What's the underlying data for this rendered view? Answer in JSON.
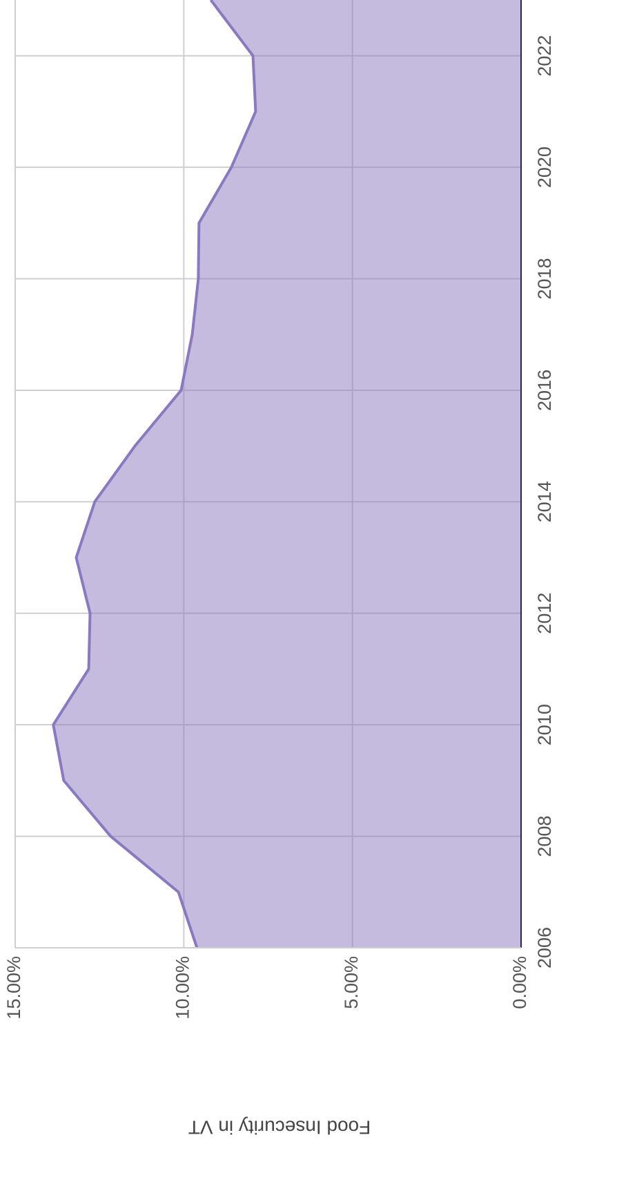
{
  "chart_data": {
    "type": "area",
    "y_label": "Food Insecurity in VT",
    "x": [
      2006,
      2007,
      2008,
      2009,
      2010,
      2011,
      2012,
      2013,
      2014,
      2015,
      2016,
      2017,
      2018,
      2019,
      2020,
      2021,
      2022,
      2023
    ],
    "series": [
      {
        "name": "Food Insecurity in VT",
        "color": "#8a78c0",
        "values": [
          9.61,
          10.16,
          12.17,
          13.56,
          13.87,
          12.82,
          12.78,
          13.19,
          12.64,
          11.45,
          10.08,
          9.75,
          9.57,
          9.55,
          8.59,
          7.87,
          7.95,
          9.2
        ]
      }
    ],
    "xlim": [
      2006,
      2023
    ],
    "xticks": [
      2006,
      2008,
      2010,
      2012,
      2014,
      2016,
      2018,
      2020,
      2022
    ],
    "ylim": [
      0,
      15
    ],
    "yticks": [
      {
        "value": 0,
        "label": "0.00%"
      },
      {
        "value": 5,
        "label": "5.00%"
      },
      {
        "value": 10,
        "label": "10.00%"
      },
      {
        "value": 15,
        "label": "15.00%"
      }
    ],
    "grid": true,
    "rotation": -90
  }
}
